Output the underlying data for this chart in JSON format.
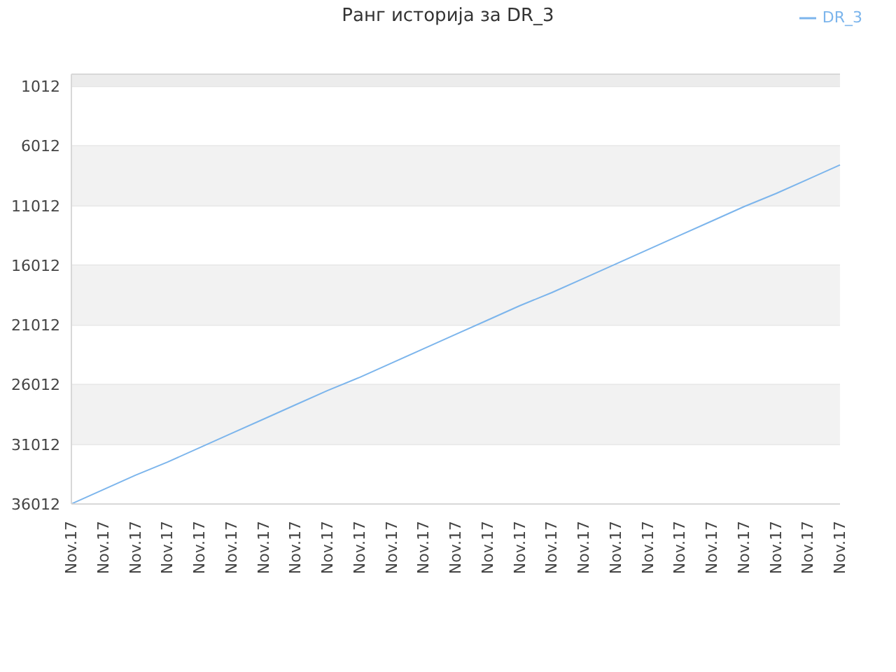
{
  "chart_data": {
    "type": "line",
    "title": "Ранг историја за DR_3",
    "categories": [
      "Nov.17",
      "Nov.17",
      "Nov.17",
      "Nov.17",
      "Nov.17",
      "Nov.17",
      "Nov.17",
      "Nov.17",
      "Nov.17",
      "Nov.17",
      "Nov.17",
      "Nov.17",
      "Nov.17",
      "Nov.17",
      "Nov.17",
      "Nov.17",
      "Nov.17",
      "Nov.17",
      "Nov.17",
      "Nov.17",
      "Nov.17",
      "Nov.17",
      "Nov.17",
      "Nov.17",
      "Nov.17"
    ],
    "series": [
      {
        "name": "DR_3",
        "color": "#7cb5ec",
        "values": [
          36000,
          34800,
          33600,
          32500,
          31300,
          30100,
          28900,
          27700,
          26500,
          25400,
          24200,
          23000,
          21800,
          20600,
          19400,
          18300,
          17100,
          15900,
          14700,
          13500,
          12300,
          11100,
          10000,
          8800,
          7600
        ]
      }
    ],
    "ylim": [
      36012,
      0
    ],
    "yticks": [
      1012,
      6012,
      11012,
      16012,
      21012,
      26012,
      31012,
      36012
    ],
    "bands": [
      {
        "axis": "y",
        "from": 0,
        "to": 1012,
        "color": "#ececec"
      },
      {
        "axis": "y",
        "from": 6012,
        "to": 11012,
        "color": "#f2f2f2"
      },
      {
        "axis": "y",
        "from": 16012,
        "to": 21012,
        "color": "#f2f2f2"
      },
      {
        "axis": "y",
        "from": 26012,
        "to": 31012,
        "color": "#f2f2f2"
      }
    ],
    "grid": "y",
    "legend": "top right",
    "marker": "none",
    "line_style": "solid"
  }
}
